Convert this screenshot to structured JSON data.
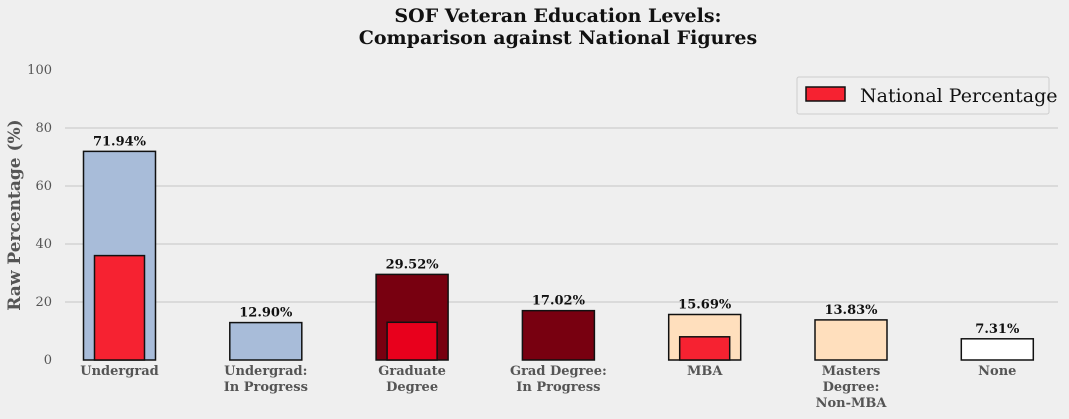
{
  "chart_data": {
    "type": "bar",
    "title": "SOF Veteran Education Levels:",
    "subtitle": "Comparison against National Figures",
    "xlabel": "",
    "ylabel": "Raw Percentage (%)",
    "ylim": [
      0,
      100
    ],
    "yticks": [
      0,
      20,
      40,
      60,
      80,
      100
    ],
    "grid": "horizontal",
    "legend_position": "top-right",
    "categories": [
      [
        "Undergrad"
      ],
      [
        "Undergrad:",
        "In Progress"
      ],
      [
        "Graduate",
        "Degree"
      ],
      [
        "Grad Degree:",
        "In Progress"
      ],
      [
        "MBA"
      ],
      [
        "Masters",
        "Degree:",
        "Non-MBA"
      ],
      [
        "None"
      ]
    ],
    "series": [
      {
        "values": [
          71.94,
          12.9,
          29.52,
          17.02,
          15.69,
          13.83,
          7.31
        ],
        "labels": [
          "71.94%",
          "12.90%",
          "29.52%",
          "17.02%",
          "15.69%",
          "13.83%",
          "7.31%"
        ],
        "colors": [
          "#a8bcd9",
          "#a8bcd9",
          "#780010",
          "#780010",
          "#ffdfbd",
          "#ffdfbd",
          "#ffffff"
        ]
      },
      {
        "name": "National Percentage",
        "values": [
          36,
          null,
          13,
          null,
          8,
          null,
          null
        ],
        "colors": [
          "#f62231",
          null,
          "#e8001c",
          null,
          "#f62231",
          null,
          null
        ]
      }
    ],
    "legend_color": "#f62231"
  }
}
